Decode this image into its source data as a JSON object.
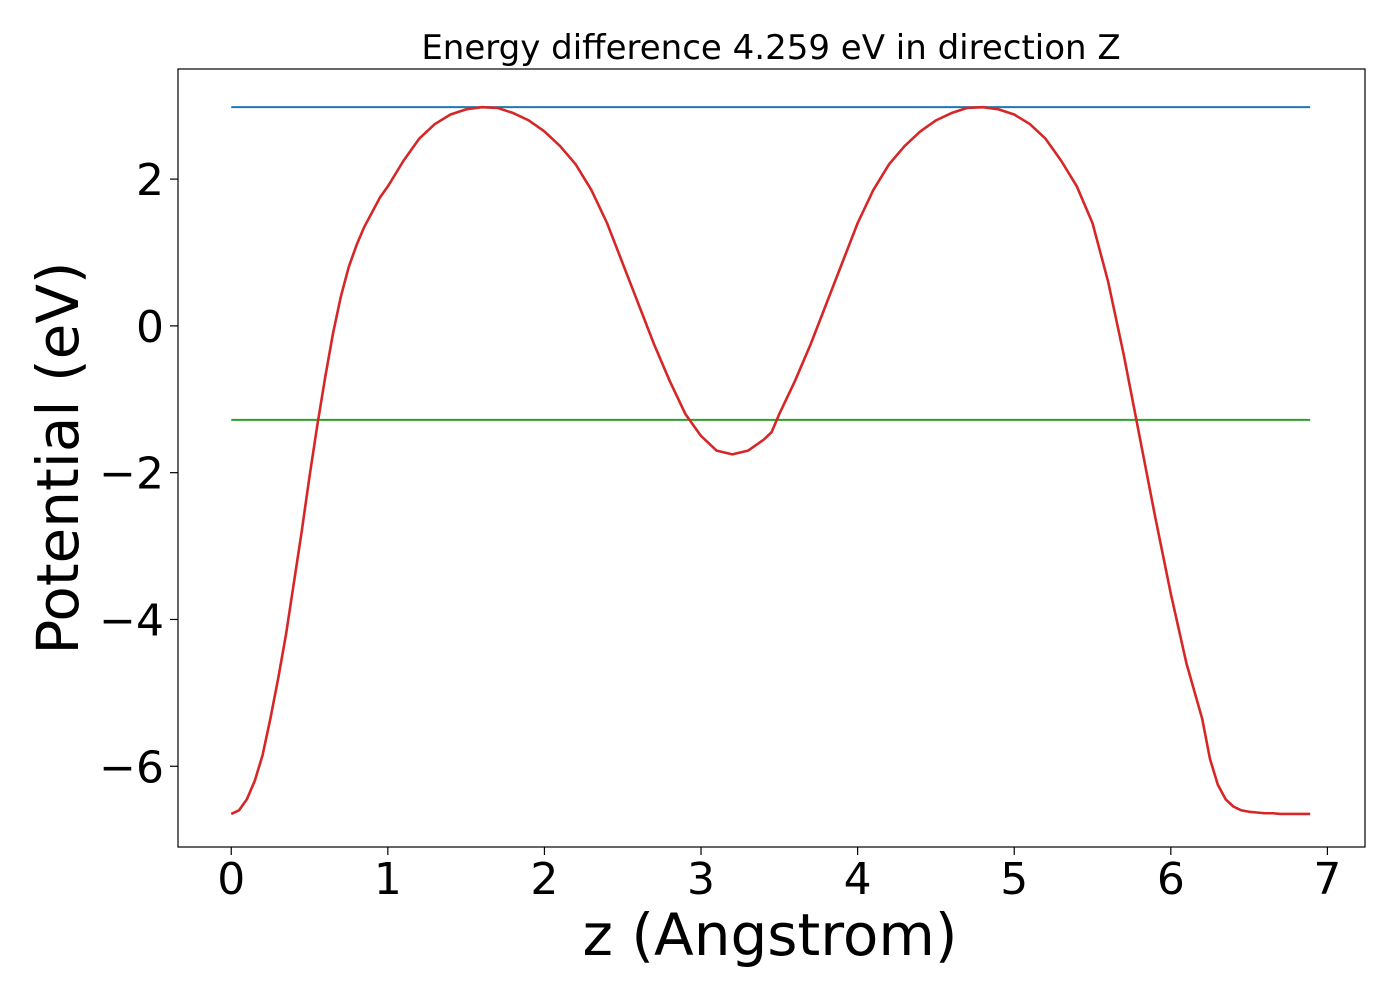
{
  "chart_data": {
    "type": "line",
    "title": "Energy difference 4.259 eV in direction Z",
    "xlabel": "z (Angstrom)",
    "ylabel": "Potential (eV)",
    "xlim": [
      -0.34,
      7.24
    ],
    "ylim": [
      -7.1,
      3.5
    ],
    "xticks": [
      0,
      1,
      2,
      3,
      4,
      5,
      6,
      7
    ],
    "xtick_labels": [
      "0",
      "1",
      "2",
      "3",
      "4",
      "5",
      "6",
      "7"
    ],
    "yticks": [
      2,
      0,
      -2,
      -4,
      -6
    ],
    "ytick_labels": [
      "2",
      "0",
      "−2",
      "−4",
      "−6"
    ],
    "grid": false,
    "legend": "none",
    "series": [
      {
        "color": "#d62728",
        "x": [
          0,
          0.05,
          0.1,
          0.15,
          0.2,
          0.25,
          0.3,
          0.35,
          0.4,
          0.45,
          0.5,
          0.55,
          0.6,
          0.65,
          0.7,
          0.75,
          0.8,
          0.85,
          0.9,
          0.95,
          1.0,
          1.1,
          1.2,
          1.3,
          1.4,
          1.5,
          1.6,
          1.7,
          1.8,
          1.9,
          2.0,
          2.1,
          2.2,
          2.3,
          2.4,
          2.5,
          2.6,
          2.7,
          2.8,
          2.9,
          3.0,
          3.1,
          3.2,
          3.3,
          3.4,
          3.45,
          3.5,
          3.6,
          3.7,
          3.8,
          3.9,
          4.0,
          4.1,
          4.2,
          4.3,
          4.4,
          4.5,
          4.6,
          4.7,
          4.8,
          4.9,
          5.0,
          5.1,
          5.2,
          5.25,
          5.3,
          5.4,
          5.5,
          5.6,
          5.7,
          5.8,
          5.9,
          6.0,
          6.1,
          6.2,
          6.25,
          6.3,
          6.35,
          6.4,
          6.45,
          6.5,
          6.55,
          6.6,
          6.65,
          6.7,
          6.75,
          6.8,
          6.85,
          6.89
        ],
        "y": [
          -6.65,
          -6.6,
          -6.45,
          -6.2,
          -5.85,
          -5.35,
          -4.8,
          -4.2,
          -3.5,
          -2.8,
          -2.05,
          -1.35,
          -0.7,
          -0.1,
          0.4,
          0.8,
          1.1,
          1.35,
          1.55,
          1.75,
          1.9,
          2.25,
          2.55,
          2.75,
          2.88,
          2.95,
          2.98,
          2.97,
          2.9,
          2.8,
          2.65,
          2.45,
          2.2,
          1.85,
          1.4,
          0.85,
          0.3,
          -0.25,
          -0.75,
          -1.2,
          -1.5,
          -1.7,
          -1.75,
          -1.7,
          -1.55,
          -1.45,
          -1.2,
          -0.75,
          -0.25,
          0.3,
          0.85,
          1.4,
          1.85,
          2.2,
          2.45,
          2.65,
          2.8,
          2.9,
          2.97,
          2.98,
          2.95,
          2.88,
          2.75,
          2.55,
          2.4,
          2.25,
          1.9,
          1.4,
          0.6,
          -0.4,
          -1.5,
          -2.6,
          -3.65,
          -4.6,
          -5.35,
          -5.9,
          -6.25,
          -6.45,
          -6.55,
          -6.6,
          -6.62,
          -6.63,
          -6.64,
          -6.64,
          -6.65,
          -6.65,
          -6.65,
          -6.65,
          -6.65
        ]
      },
      {
        "color": "#1f77b4",
        "x": [
          0,
          6.89
        ],
        "y": [
          2.98,
          2.98
        ]
      },
      {
        "color": "#2ca02c",
        "x": [
          0,
          6.89
        ],
        "y": [
          -1.28,
          -1.28
        ]
      }
    ]
  }
}
